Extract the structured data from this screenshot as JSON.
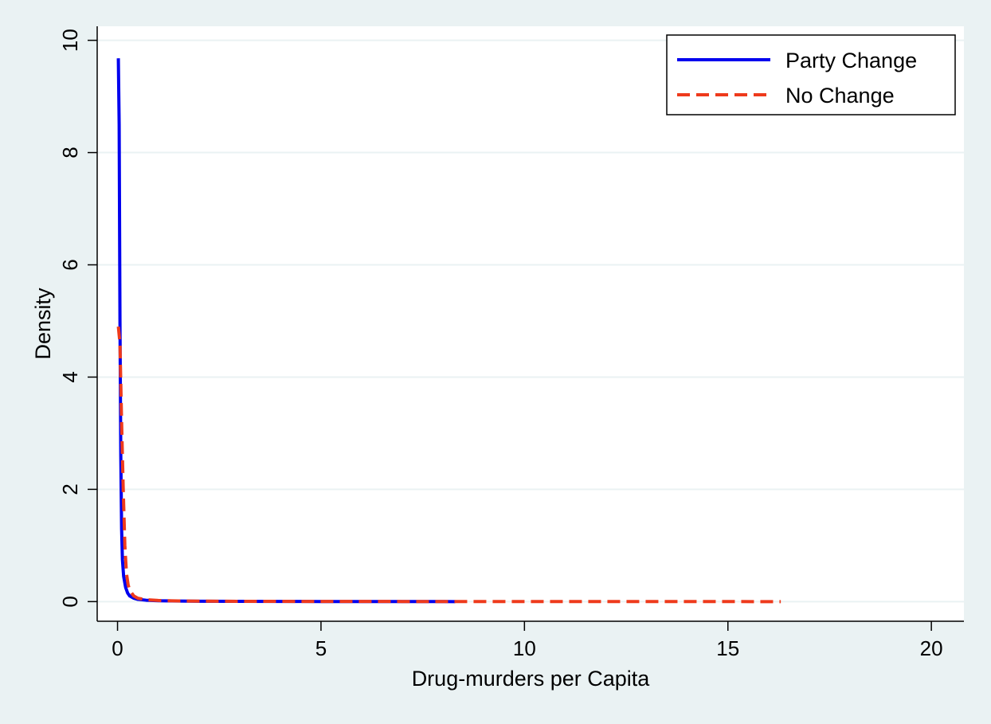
{
  "chart_data": {
    "type": "line",
    "title": "",
    "xlabel": "Drug-murders per Capita",
    "ylabel": "Density",
    "xlim": [
      -0.5,
      20.8
    ],
    "ylim": [
      -0.35,
      10.25
    ],
    "xticks": [
      0,
      5,
      10,
      15,
      20
    ],
    "yticks": [
      0,
      2,
      4,
      6,
      8,
      10
    ],
    "grid": true,
    "legend_position": "top-right",
    "series": [
      {
        "name": "Party Change",
        "color": "#0000ee",
        "line_style": "solid",
        "x": [
          0.02,
          0.04,
          0.06,
          0.08,
          0.1,
          0.12,
          0.15,
          0.2,
          0.25,
          0.3,
          0.4,
          0.5,
          0.7,
          1.0,
          1.5,
          2.0,
          3.0,
          4.0,
          5.0,
          6.0,
          7.0,
          8.0,
          8.3
        ],
        "y": [
          9.68,
          8.5,
          5.0,
          2.6,
          1.3,
          0.75,
          0.45,
          0.25,
          0.15,
          0.1,
          0.06,
          0.04,
          0.025,
          0.015,
          0.01,
          0.007,
          0.004,
          0.003,
          0.002,
          0.0015,
          0.001,
          0.001,
          0.0
        ]
      },
      {
        "name": "No Change",
        "color": "#ee3a1c",
        "line_style": "dashed",
        "x": [
          0.02,
          0.06,
          0.1,
          0.14,
          0.18,
          0.22,
          0.26,
          0.3,
          0.4,
          0.5,
          0.7,
          1.0,
          1.5,
          2.0,
          3.0,
          5.0,
          7.0,
          9.0,
          11.0,
          13.0,
          15.0,
          16.3
        ],
        "y": [
          4.9,
          4.6,
          3.2,
          2.0,
          1.0,
          0.5,
          0.3,
          0.2,
          0.1,
          0.06,
          0.035,
          0.02,
          0.012,
          0.008,
          0.005,
          0.003,
          0.002,
          0.0015,
          0.001,
          0.001,
          0.0005,
          0.0
        ]
      }
    ]
  }
}
